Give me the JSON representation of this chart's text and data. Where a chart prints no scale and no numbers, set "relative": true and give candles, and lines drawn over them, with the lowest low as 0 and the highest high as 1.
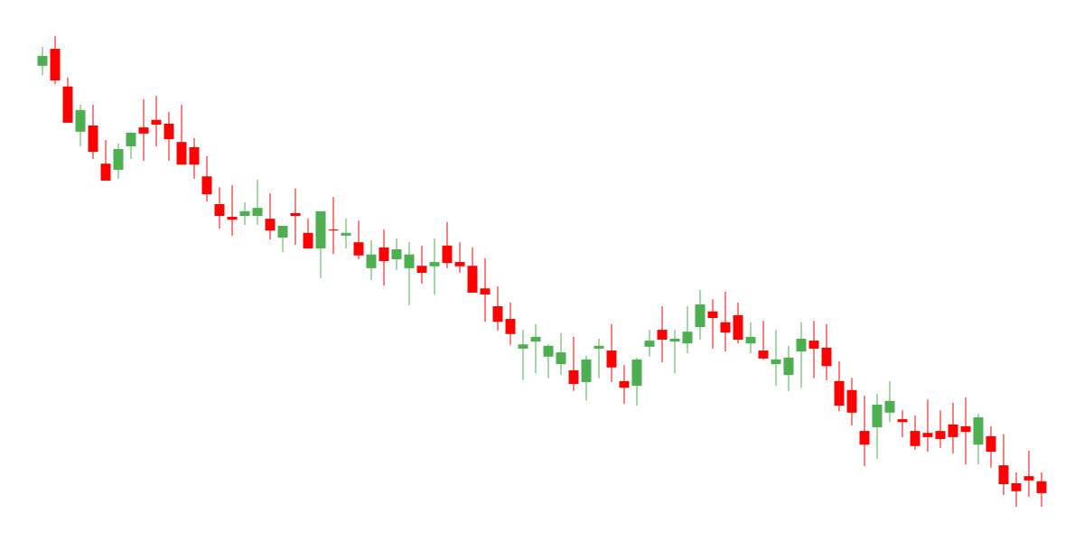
{
  "chart_data": {
    "type": "candlestick",
    "relative": true,
    "categories": [
      null,
      null,
      null,
      null,
      null,
      null,
      null,
      null,
      null,
      null,
      null,
      null,
      null,
      null,
      null,
      null,
      null,
      null,
      null,
      null,
      null,
      null,
      null,
      null,
      null,
      null,
      null,
      null,
      null,
      null,
      null,
      null,
      null,
      null,
      null,
      null,
      null,
      null,
      null,
      null,
      null,
      null,
      null,
      null,
      null,
      null,
      null,
      null,
      null,
      null,
      null,
      null,
      null,
      null,
      null,
      null,
      null,
      null,
      null,
      null,
      null,
      null,
      null,
      null,
      null,
      null,
      null,
      null,
      null,
      null,
      null,
      null,
      null,
      null,
      null,
      null,
      null,
      null,
      null,
      null
    ],
    "ohlc": [
      [
        0.937,
        0.977,
        0.917,
        0.958
      ],
      [
        0.973,
        1.0,
        0.898,
        0.906
      ],
      [
        0.893,
        0.912,
        0.816,
        0.816
      ],
      [
        0.797,
        0.854,
        0.766,
        0.843
      ],
      [
        0.81,
        0.854,
        0.739,
        0.754
      ],
      [
        0.729,
        0.779,
        0.693,
        0.693
      ],
      [
        0.716,
        0.772,
        0.697,
        0.76
      ],
      [
        0.766,
        0.795,
        0.739,
        0.795
      ],
      [
        0.806,
        0.866,
        0.735,
        0.793
      ],
      [
        0.822,
        0.873,
        0.766,
        0.812
      ],
      [
        0.814,
        0.839,
        0.735,
        0.781
      ],
      [
        0.775,
        0.854,
        0.727,
        0.727
      ],
      [
        0.764,
        0.783,
        0.697,
        0.727
      ],
      [
        0.702,
        0.745,
        0.649,
        0.664
      ],
      [
        0.643,
        0.679,
        0.591,
        0.618
      ],
      [
        0.616,
        0.683,
        0.576,
        0.61
      ],
      [
        0.618,
        0.647,
        0.599,
        0.628
      ],
      [
        0.618,
        0.695,
        0.599,
        0.635
      ],
      [
        0.612,
        0.666,
        0.568,
        0.587
      ],
      [
        0.572,
        0.597,
        0.541,
        0.597
      ],
      [
        0.624,
        0.676,
        0.557,
        0.618
      ],
      [
        0.582,
        0.612,
        0.549,
        0.549
      ],
      [
        0.549,
        0.628,
        0.486,
        0.628
      ],
      [
        0.589,
        0.658,
        0.537,
        0.587
      ],
      [
        0.576,
        0.612,
        0.549,
        0.582
      ],
      [
        0.562,
        0.608,
        0.526,
        0.534
      ],
      [
        0.507,
        0.566,
        0.482,
        0.536
      ],
      [
        0.551,
        0.589,
        0.47,
        0.522
      ],
      [
        0.526,
        0.57,
        0.503,
        0.547
      ],
      [
        0.507,
        0.562,
        0.428,
        0.536
      ],
      [
        0.512,
        0.555,
        0.474,
        0.497
      ],
      [
        0.511,
        0.57,
        0.451,
        0.52
      ],
      [
        0.555,
        0.605,
        0.507,
        0.518
      ],
      [
        0.52,
        0.562,
        0.497,
        0.511
      ],
      [
        0.512,
        0.551,
        0.455,
        0.455
      ],
      [
        0.464,
        0.528,
        0.393,
        0.451
      ],
      [
        0.426,
        0.468,
        0.374,
        0.393
      ],
      [
        0.399,
        0.434,
        0.344,
        0.367
      ],
      [
        0.336,
        0.376,
        0.269,
        0.345
      ],
      [
        0.351,
        0.388,
        0.284,
        0.361
      ],
      [
        0.319,
        0.345,
        0.273,
        0.342
      ],
      [
        0.303,
        0.369,
        0.28,
        0.328
      ],
      [
        0.29,
        0.361,
        0.246,
        0.261
      ],
      [
        0.265,
        0.321,
        0.226,
        0.313
      ],
      [
        0.336,
        0.357,
        0.273,
        0.342
      ],
      [
        0.332,
        0.388,
        0.265,
        0.296
      ],
      [
        0.267,
        0.301,
        0.219,
        0.253
      ],
      [
        0.257,
        0.317,
        0.215,
        0.313
      ],
      [
        0.34,
        0.376,
        0.319,
        0.353
      ],
      [
        0.376,
        0.426,
        0.307,
        0.355
      ],
      [
        0.351,
        0.376,
        0.284,
        0.357
      ],
      [
        0.347,
        0.426,
        0.326,
        0.372
      ],
      [
        0.382,
        0.461,
        0.355,
        0.43
      ],
      [
        0.415,
        0.441,
        0.336,
        0.401
      ],
      [
        0.392,
        0.457,
        0.33,
        0.37
      ],
      [
        0.407,
        0.434,
        0.347,
        0.355
      ],
      [
        0.347,
        0.392,
        0.326,
        0.361
      ],
      [
        0.332,
        0.395,
        0.313,
        0.315
      ],
      [
        0.303,
        0.376,
        0.257,
        0.313
      ],
      [
        0.28,
        0.342,
        0.246,
        0.317
      ],
      [
        0.33,
        0.392,
        0.253,
        0.357
      ],
      [
        0.353,
        0.395,
        0.273,
        0.336
      ],
      [
        0.338,
        0.388,
        0.269,
        0.299
      ],
      [
        0.267,
        0.309,
        0.203,
        0.215
      ],
      [
        0.248,
        0.274,
        0.173,
        0.2
      ],
      [
        0.161,
        0.236,
        0.086,
        0.132
      ],
      [
        0.169,
        0.24,
        0.102,
        0.217
      ],
      [
        0.2,
        0.267,
        0.18,
        0.225
      ],
      [
        0.186,
        0.205,
        0.148,
        0.18
      ],
      [
        0.161,
        0.194,
        0.121,
        0.129
      ],
      [
        0.157,
        0.228,
        0.117,
        0.148
      ],
      [
        0.161,
        0.205,
        0.125,
        0.144
      ],
      [
        0.175,
        0.221,
        0.113,
        0.148
      ],
      [
        0.171,
        0.232,
        0.09,
        0.159
      ],
      [
        0.132,
        0.198,
        0.09,
        0.19
      ],
      [
        0.15,
        0.171,
        0.083,
        0.117
      ],
      [
        0.088,
        0.154,
        0.025,
        0.048
      ],
      [
        0.05,
        0.073,
        0.0,
        0.033
      ],
      [
        0.065,
        0.119,
        0.021,
        0.056
      ],
      [
        0.054,
        0.073,
        0.0,
        0.029
      ]
    ],
    "colors": [
      "#4caf50",
      "#ff0000",
      "#ff0000",
      "#4caf50",
      "#ff0000",
      "#ff0000",
      "#4caf50",
      "#4caf50",
      "#ff0000",
      "#ff0000",
      "#ff0000",
      "#ff0000",
      "#ff0000",
      "#ff0000",
      "#ff0000",
      "#ff0000",
      "#4caf50",
      "#4caf50",
      "#ff0000",
      "#4caf50",
      "#ff0000",
      "#ff0000",
      "#4caf50",
      "#ff0000",
      "#4caf50",
      "#ff0000",
      "#4caf50",
      "#ff0000",
      "#4caf50",
      "#4caf50",
      "#ff0000",
      "#4caf50",
      "#ff0000",
      "#ff0000",
      "#ff0000",
      "#ff0000",
      "#ff0000",
      "#ff0000",
      "#4caf50",
      "#4caf50",
      "#4caf50",
      "#4caf50",
      "#ff0000",
      "#4caf50",
      "#4caf50",
      "#ff0000",
      "#ff0000",
      "#4caf50",
      "#4caf50",
      "#ff0000",
      "#4caf50",
      "#4caf50",
      "#4caf50",
      "#ff0000",
      "#ff0000",
      "#ff0000",
      "#4caf50",
      "#ff0000",
      "#4caf50",
      "#4caf50",
      "#4caf50",
      "#ff0000",
      "#ff0000",
      "#ff0000",
      "#ff0000",
      "#ff0000",
      "#4caf50",
      "#4caf50",
      "#ff0000",
      "#ff0000",
      "#ff0000",
      "#ff0000",
      "#ff0000",
      "#ff0000",
      "#4caf50",
      "#ff0000",
      "#ff0000",
      "#ff0000",
      "#ff0000",
      "#ff0000"
    ]
  }
}
